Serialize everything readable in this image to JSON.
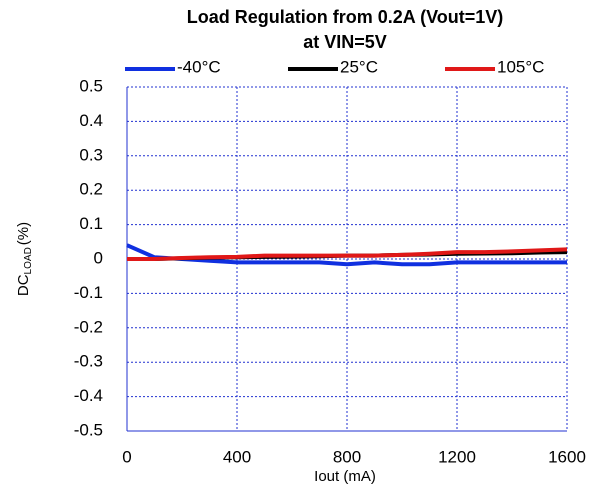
{
  "chart_data": {
    "type": "line",
    "title": [
      "Load Regulation from 0.2A (Vout=1V)",
      "at VIN=5V"
    ],
    "x_label": "Iout (mA)",
    "y_label": {
      "main": "DC",
      "sub": "LOAD",
      "unit": "(%)"
    },
    "x": [
      0,
      100,
      200,
      300,
      400,
      500,
      600,
      700,
      800,
      900,
      1000,
      1100,
      1200,
      1300,
      1400,
      1500,
      1600
    ],
    "series": [
      {
        "name": "-40°C",
        "color": "#1030e0",
        "values": [
          0.04,
          0.005,
          0.0,
          -0.005,
          -0.01,
          -0.01,
          -0.01,
          -0.01,
          -0.015,
          -0.01,
          -0.015,
          -0.015,
          -0.01,
          -0.01,
          -0.01,
          -0.01,
          -0.01
        ]
      },
      {
        "name": "25°C",
        "color": "#000000",
        "values": [
          0.0,
          0.0,
          0.002,
          0.004,
          0.005,
          0.006,
          0.007,
          0.008,
          0.01,
          0.01,
          0.012,
          0.013,
          0.015,
          0.016,
          0.017,
          0.019,
          0.02
        ]
      },
      {
        "name": "105°C",
        "color": "#e01818",
        "values": [
          0.0,
          0.0,
          0.003,
          0.005,
          0.006,
          0.01,
          0.01,
          0.01,
          0.01,
          0.01,
          0.012,
          0.015,
          0.02,
          0.02,
          0.022,
          0.025,
          0.028
        ]
      }
    ],
    "xlim": [
      0,
      1600
    ],
    "xticks": [
      0,
      400,
      800,
      1200,
      1600
    ],
    "ylim": [
      -0.5,
      0.5
    ],
    "yticks": [
      0.5,
      0.4,
      0.3,
      0.2,
      0.1,
      0,
      -0.1,
      -0.2,
      -0.3,
      -0.4,
      -0.5
    ],
    "grid": true,
    "legend": "top"
  }
}
